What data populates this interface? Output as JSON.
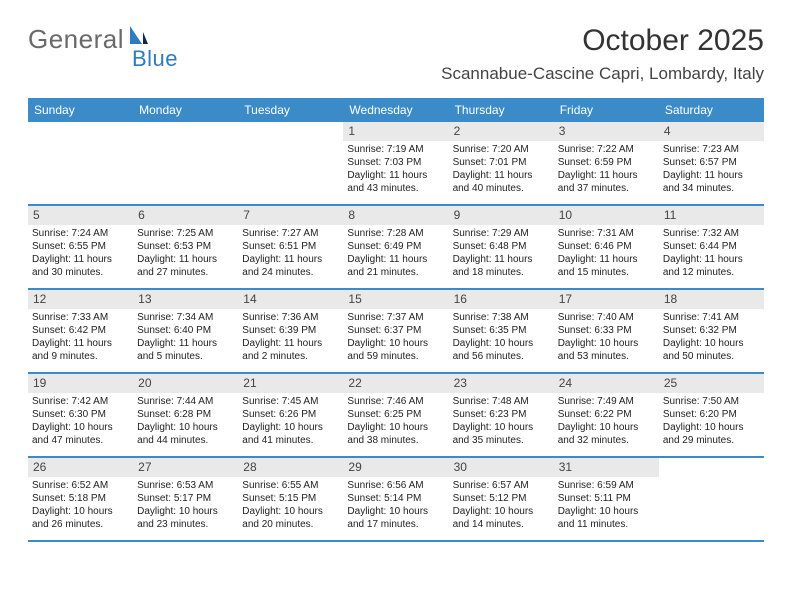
{
  "logo": {
    "general": "General",
    "blue": "Blue"
  },
  "title": "October 2025",
  "location": "Scannabue-Cascine Capri, Lombardy, Italy",
  "colors": {
    "header_bg": "#3b8bc8",
    "header_text": "#ffffff",
    "daynum_bg": "#e9e9e9",
    "border": "#3b8bc8",
    "logo_gray": "#6a6a6a",
    "logo_blue": "#2f7bbf",
    "text": "#222222"
  },
  "day_names": [
    "Sunday",
    "Monday",
    "Tuesday",
    "Wednesday",
    "Thursday",
    "Friday",
    "Saturday"
  ],
  "weeks": [
    [
      {
        "n": "",
        "sunrise": "",
        "sunset": "",
        "daylight": ""
      },
      {
        "n": "",
        "sunrise": "",
        "sunset": "",
        "daylight": ""
      },
      {
        "n": "",
        "sunrise": "",
        "sunset": "",
        "daylight": ""
      },
      {
        "n": "1",
        "sunrise": "Sunrise: 7:19 AM",
        "sunset": "Sunset: 7:03 PM",
        "daylight": "Daylight: 11 hours and 43 minutes."
      },
      {
        "n": "2",
        "sunrise": "Sunrise: 7:20 AM",
        "sunset": "Sunset: 7:01 PM",
        "daylight": "Daylight: 11 hours and 40 minutes."
      },
      {
        "n": "3",
        "sunrise": "Sunrise: 7:22 AM",
        "sunset": "Sunset: 6:59 PM",
        "daylight": "Daylight: 11 hours and 37 minutes."
      },
      {
        "n": "4",
        "sunrise": "Sunrise: 7:23 AM",
        "sunset": "Sunset: 6:57 PM",
        "daylight": "Daylight: 11 hours and 34 minutes."
      }
    ],
    [
      {
        "n": "5",
        "sunrise": "Sunrise: 7:24 AM",
        "sunset": "Sunset: 6:55 PM",
        "daylight": "Daylight: 11 hours and 30 minutes."
      },
      {
        "n": "6",
        "sunrise": "Sunrise: 7:25 AM",
        "sunset": "Sunset: 6:53 PM",
        "daylight": "Daylight: 11 hours and 27 minutes."
      },
      {
        "n": "7",
        "sunrise": "Sunrise: 7:27 AM",
        "sunset": "Sunset: 6:51 PM",
        "daylight": "Daylight: 11 hours and 24 minutes."
      },
      {
        "n": "8",
        "sunrise": "Sunrise: 7:28 AM",
        "sunset": "Sunset: 6:49 PM",
        "daylight": "Daylight: 11 hours and 21 minutes."
      },
      {
        "n": "9",
        "sunrise": "Sunrise: 7:29 AM",
        "sunset": "Sunset: 6:48 PM",
        "daylight": "Daylight: 11 hours and 18 minutes."
      },
      {
        "n": "10",
        "sunrise": "Sunrise: 7:31 AM",
        "sunset": "Sunset: 6:46 PM",
        "daylight": "Daylight: 11 hours and 15 minutes."
      },
      {
        "n": "11",
        "sunrise": "Sunrise: 7:32 AM",
        "sunset": "Sunset: 6:44 PM",
        "daylight": "Daylight: 11 hours and 12 minutes."
      }
    ],
    [
      {
        "n": "12",
        "sunrise": "Sunrise: 7:33 AM",
        "sunset": "Sunset: 6:42 PM",
        "daylight": "Daylight: 11 hours and 9 minutes."
      },
      {
        "n": "13",
        "sunrise": "Sunrise: 7:34 AM",
        "sunset": "Sunset: 6:40 PM",
        "daylight": "Daylight: 11 hours and 5 minutes."
      },
      {
        "n": "14",
        "sunrise": "Sunrise: 7:36 AM",
        "sunset": "Sunset: 6:39 PM",
        "daylight": "Daylight: 11 hours and 2 minutes."
      },
      {
        "n": "15",
        "sunrise": "Sunrise: 7:37 AM",
        "sunset": "Sunset: 6:37 PM",
        "daylight": "Daylight: 10 hours and 59 minutes."
      },
      {
        "n": "16",
        "sunrise": "Sunrise: 7:38 AM",
        "sunset": "Sunset: 6:35 PM",
        "daylight": "Daylight: 10 hours and 56 minutes."
      },
      {
        "n": "17",
        "sunrise": "Sunrise: 7:40 AM",
        "sunset": "Sunset: 6:33 PM",
        "daylight": "Daylight: 10 hours and 53 minutes."
      },
      {
        "n": "18",
        "sunrise": "Sunrise: 7:41 AM",
        "sunset": "Sunset: 6:32 PM",
        "daylight": "Daylight: 10 hours and 50 minutes."
      }
    ],
    [
      {
        "n": "19",
        "sunrise": "Sunrise: 7:42 AM",
        "sunset": "Sunset: 6:30 PM",
        "daylight": "Daylight: 10 hours and 47 minutes."
      },
      {
        "n": "20",
        "sunrise": "Sunrise: 7:44 AM",
        "sunset": "Sunset: 6:28 PM",
        "daylight": "Daylight: 10 hours and 44 minutes."
      },
      {
        "n": "21",
        "sunrise": "Sunrise: 7:45 AM",
        "sunset": "Sunset: 6:26 PM",
        "daylight": "Daylight: 10 hours and 41 minutes."
      },
      {
        "n": "22",
        "sunrise": "Sunrise: 7:46 AM",
        "sunset": "Sunset: 6:25 PM",
        "daylight": "Daylight: 10 hours and 38 minutes."
      },
      {
        "n": "23",
        "sunrise": "Sunrise: 7:48 AM",
        "sunset": "Sunset: 6:23 PM",
        "daylight": "Daylight: 10 hours and 35 minutes."
      },
      {
        "n": "24",
        "sunrise": "Sunrise: 7:49 AM",
        "sunset": "Sunset: 6:22 PM",
        "daylight": "Daylight: 10 hours and 32 minutes."
      },
      {
        "n": "25",
        "sunrise": "Sunrise: 7:50 AM",
        "sunset": "Sunset: 6:20 PM",
        "daylight": "Daylight: 10 hours and 29 minutes."
      }
    ],
    [
      {
        "n": "26",
        "sunrise": "Sunrise: 6:52 AM",
        "sunset": "Sunset: 5:18 PM",
        "daylight": "Daylight: 10 hours and 26 minutes."
      },
      {
        "n": "27",
        "sunrise": "Sunrise: 6:53 AM",
        "sunset": "Sunset: 5:17 PM",
        "daylight": "Daylight: 10 hours and 23 minutes."
      },
      {
        "n": "28",
        "sunrise": "Sunrise: 6:55 AM",
        "sunset": "Sunset: 5:15 PM",
        "daylight": "Daylight: 10 hours and 20 minutes."
      },
      {
        "n": "29",
        "sunrise": "Sunrise: 6:56 AM",
        "sunset": "Sunset: 5:14 PM",
        "daylight": "Daylight: 10 hours and 17 minutes."
      },
      {
        "n": "30",
        "sunrise": "Sunrise: 6:57 AM",
        "sunset": "Sunset: 5:12 PM",
        "daylight": "Daylight: 10 hours and 14 minutes."
      },
      {
        "n": "31",
        "sunrise": "Sunrise: 6:59 AM",
        "sunset": "Sunset: 5:11 PM",
        "daylight": "Daylight: 10 hours and 11 minutes."
      },
      {
        "n": "",
        "sunrise": "",
        "sunset": "",
        "daylight": ""
      }
    ]
  ]
}
